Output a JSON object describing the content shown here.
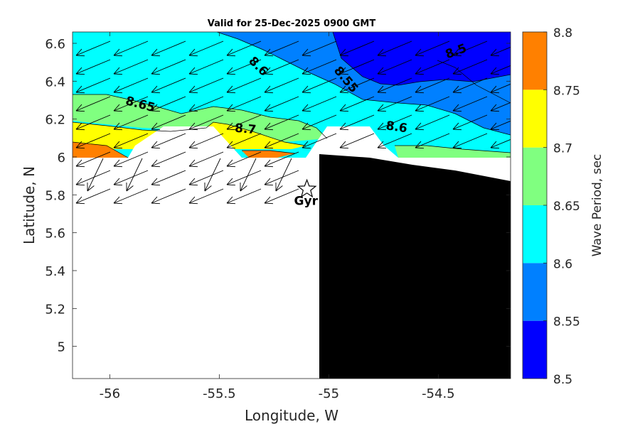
{
  "chart_data": {
    "type": "contour",
    "title": "Valid for 25-Dec-2025 0900 GMT",
    "xlabel": "Longitude, W",
    "ylabel": "Latitude, N",
    "xlim": [
      -56.17,
      -54.17
    ],
    "ylim": [
      4.83,
      6.66
    ],
    "xticks": [
      -56,
      -55.5,
      -55,
      -54.5
    ],
    "xtick_labels": [
      "-56",
      "-55.5",
      "-55",
      "-54.5"
    ],
    "yticks": [
      5,
      5.2,
      5.4,
      5.6,
      5.8,
      6,
      6.2,
      6.4,
      6.6
    ],
    "ytick_labels": [
      "5",
      "5.2",
      "5.4",
      "5.6",
      "5.8",
      "6",
      "6.2",
      "6.4",
      "6.6"
    ],
    "colorbar": {
      "label": "Wave Period, sec",
      "ticks": [
        8.5,
        8.55,
        8.6,
        8.65,
        8.7,
        8.75,
        8.8
      ],
      "tick_labels": [
        "8.5",
        "8.55",
        "8.6",
        "8.65",
        "8.7",
        "8.75",
        "8.8"
      ],
      "bands": [
        {
          "from": 8.5,
          "to": 8.55,
          "color": "#0000ff"
        },
        {
          "from": 8.55,
          "to": 8.6,
          "color": "#0080ff"
        },
        {
          "from": 8.6,
          "to": 8.65,
          "color": "#00ffff"
        },
        {
          "from": 8.65,
          "to": 8.7,
          "color": "#80ff80"
        },
        {
          "from": 8.7,
          "to": 8.75,
          "color": "#ffff00"
        },
        {
          "from": 8.75,
          "to": 8.8,
          "color": "#ff8000"
        }
      ]
    },
    "contour_labels": [
      {
        "text": "8.5",
        "x": -54.42,
        "y": 6.56,
        "rotation": -20
      },
      {
        "text": "8.55",
        "x": -54.92,
        "y": 6.41,
        "rotation": 50
      },
      {
        "text": "8.6",
        "x": -55.32,
        "y": 6.48,
        "rotation": 45
      },
      {
        "text": "8.6",
        "x": -54.69,
        "y": 6.16,
        "rotation": 8
      },
      {
        "text": "8.65",
        "x": -55.86,
        "y": 6.28,
        "rotation": 15
      },
      {
        "text": "8.7",
        "x": -55.38,
        "y": 6.15,
        "rotation": 5
      }
    ],
    "station": {
      "name": "Gyr",
      "x": -55.1,
      "y": 5.83
    },
    "land_color": "#000000",
    "wave_direction_arrows": "to southwest"
  }
}
